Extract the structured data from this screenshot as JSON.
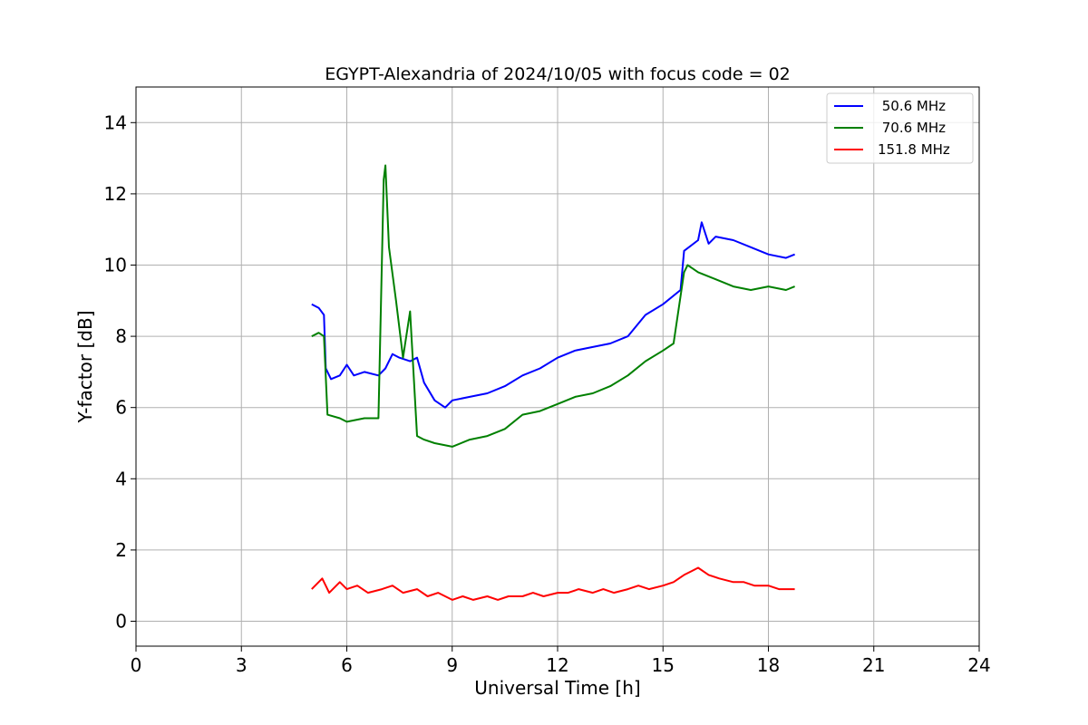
{
  "chart_data": {
    "type": "line",
    "title": "EGYPT-Alexandria of 2024/10/05 with focus code = 02",
    "xlabel": "Universal Time [h]",
    "ylabel": "Y-factor [dB]",
    "xlim": [
      0,
      24
    ],
    "ylim": [
      -0.7,
      15.0
    ],
    "xticks": [
      0,
      3,
      6,
      9,
      12,
      15,
      18,
      21,
      24
    ],
    "yticks": [
      0,
      2,
      4,
      6,
      8,
      10,
      12,
      14
    ],
    "xtick_labels": [
      "0",
      "3",
      "6",
      "9",
      "12",
      "15",
      "18",
      "21",
      "24"
    ],
    "ytick_labels": [
      "0",
      "2",
      "4",
      "6",
      "8",
      "10",
      "12",
      "14"
    ],
    "grid": true,
    "legend_position": "top-right",
    "series": [
      {
        "name": " 50.6 MHz",
        "color": "#0000ff",
        "x": [
          5.0,
          5.2,
          5.35,
          5.4,
          5.55,
          5.8,
          6.0,
          6.2,
          6.5,
          6.9,
          7.1,
          7.3,
          7.5,
          7.8,
          8.0,
          8.2,
          8.5,
          8.8,
          9.0,
          9.5,
          10.0,
          10.5,
          11.0,
          11.5,
          12.0,
          12.5,
          13.0,
          13.5,
          14.0,
          14.5,
          15.0,
          15.5,
          15.6,
          16.0,
          16.1,
          16.3,
          16.5,
          17.0,
          17.5,
          18.0,
          18.5,
          18.75
        ],
        "y": [
          8.9,
          8.8,
          8.6,
          7.1,
          6.8,
          6.9,
          7.2,
          6.9,
          7.0,
          6.9,
          7.1,
          7.5,
          7.4,
          7.3,
          7.4,
          6.7,
          6.2,
          6.0,
          6.2,
          6.3,
          6.4,
          6.6,
          6.9,
          7.1,
          7.4,
          7.6,
          7.7,
          7.8,
          8.0,
          8.6,
          8.9,
          9.3,
          10.4,
          10.7,
          11.2,
          10.6,
          10.8,
          10.7,
          10.5,
          10.3,
          10.2,
          10.3
        ]
      },
      {
        "name": " 70.6 MHz",
        "color": "#008000",
        "x": [
          5.0,
          5.2,
          5.35,
          5.45,
          5.8,
          6.0,
          6.5,
          6.9,
          7.05,
          7.1,
          7.2,
          7.4,
          7.6,
          7.8,
          8.0,
          8.2,
          8.5,
          9.0,
          9.5,
          10.0,
          10.5,
          11.0,
          11.5,
          12.0,
          12.5,
          13.0,
          13.5,
          14.0,
          14.5,
          15.0,
          15.3,
          15.6,
          15.7,
          16.0,
          16.5,
          17.0,
          17.5,
          18.0,
          18.5,
          18.75
        ],
        "y": [
          8.0,
          8.1,
          8.0,
          5.8,
          5.7,
          5.6,
          5.7,
          5.7,
          12.4,
          12.8,
          10.5,
          9.0,
          7.4,
          8.7,
          5.2,
          5.1,
          5.0,
          4.9,
          5.1,
          5.2,
          5.4,
          5.8,
          5.9,
          6.1,
          6.3,
          6.4,
          6.6,
          6.9,
          7.3,
          7.6,
          7.8,
          9.8,
          10.0,
          9.8,
          9.6,
          9.4,
          9.3,
          9.4,
          9.3,
          9.4
        ]
      },
      {
        "name": "151.8 MHz",
        "color": "#ff0000",
        "x": [
          5.0,
          5.3,
          5.5,
          5.8,
          6.0,
          6.3,
          6.6,
          7.0,
          7.3,
          7.6,
          8.0,
          8.3,
          8.6,
          9.0,
          9.3,
          9.6,
          10.0,
          10.3,
          10.6,
          11.0,
          11.3,
          11.6,
          12.0,
          12.3,
          12.6,
          13.0,
          13.3,
          13.6,
          14.0,
          14.3,
          14.6,
          15.0,
          15.3,
          15.6,
          16.0,
          16.3,
          16.6,
          17.0,
          17.3,
          17.6,
          18.0,
          18.3,
          18.6,
          18.75
        ],
        "y": [
          0.9,
          1.2,
          0.8,
          1.1,
          0.9,
          1.0,
          0.8,
          0.9,
          1.0,
          0.8,
          0.9,
          0.7,
          0.8,
          0.6,
          0.7,
          0.6,
          0.7,
          0.6,
          0.7,
          0.7,
          0.8,
          0.7,
          0.8,
          0.8,
          0.9,
          0.8,
          0.9,
          0.8,
          0.9,
          1.0,
          0.9,
          1.0,
          1.1,
          1.3,
          1.5,
          1.3,
          1.2,
          1.1,
          1.1,
          1.0,
          1.0,
          0.9,
          0.9,
          0.9
        ]
      }
    ]
  }
}
